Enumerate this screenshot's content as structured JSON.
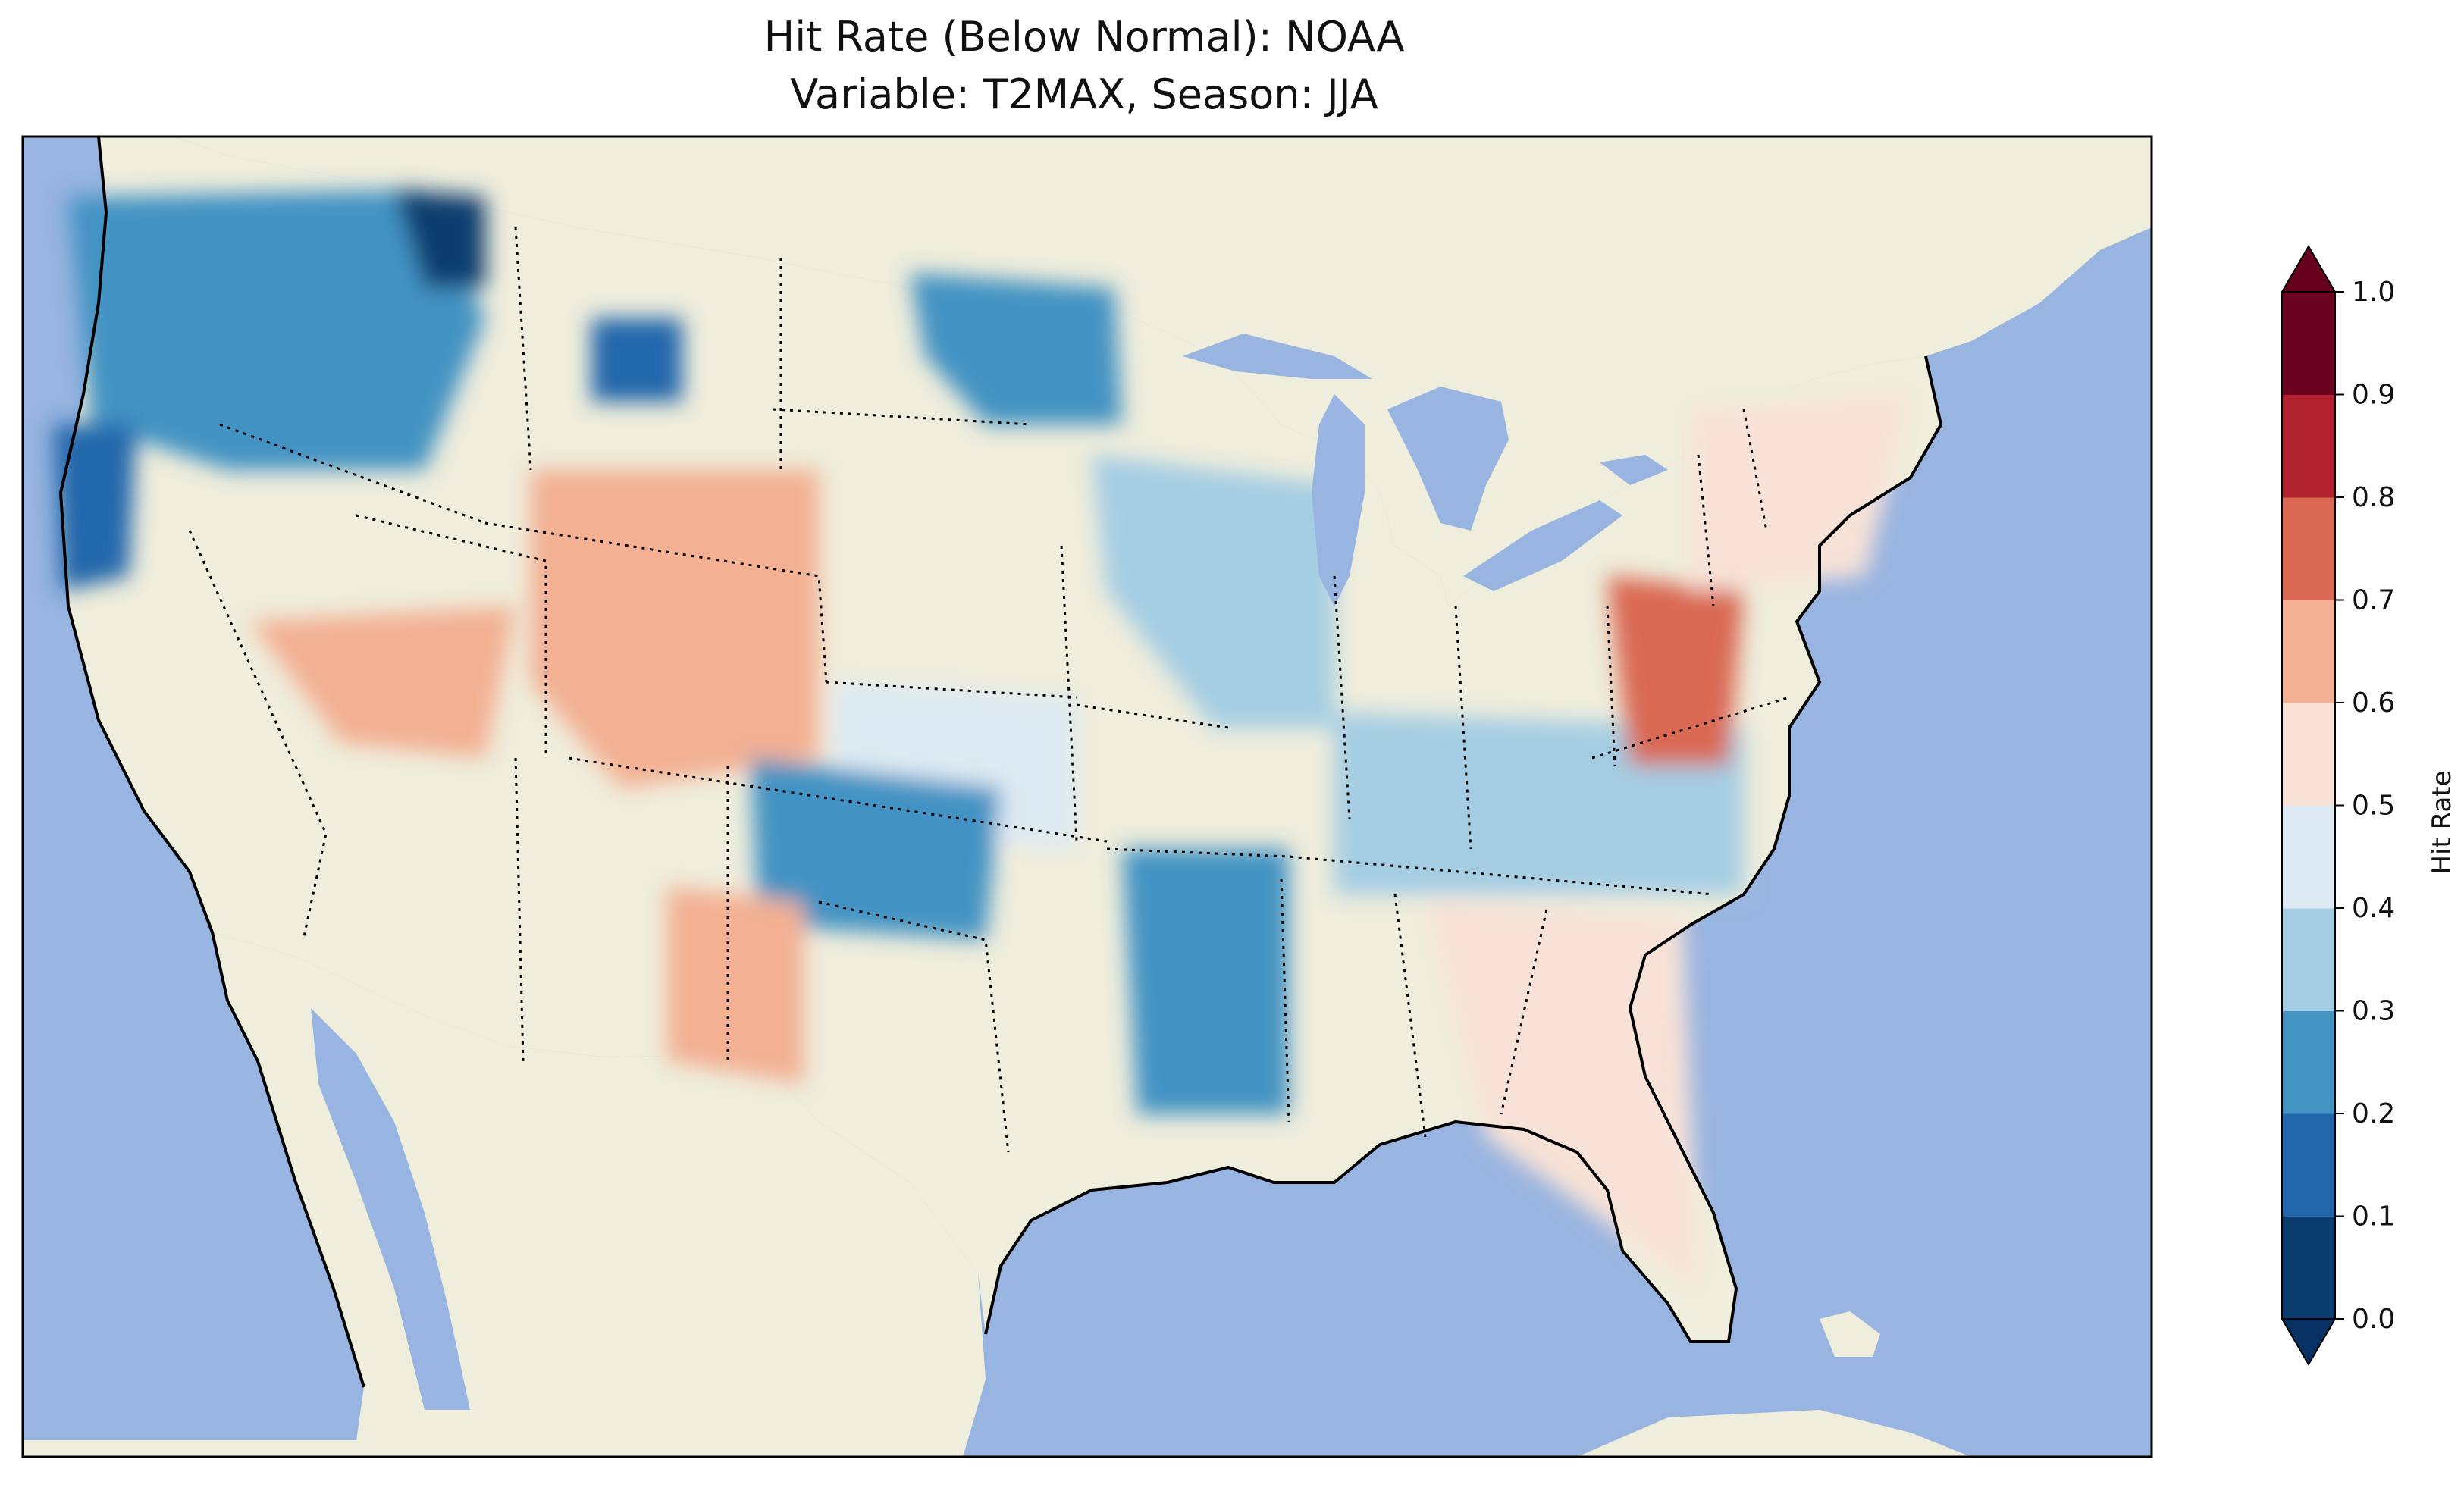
{
  "title": {
    "line1": "Hit Rate (Below Normal): NOAA",
    "line2": "Variable: T2MAX, Season: JJA"
  },
  "map": {
    "ocean_color": "#98b4e0",
    "land_color": "#efeddc",
    "extent": "Contiguous United States",
    "projection": "PlateCarree"
  },
  "colorbar": {
    "label": "Hit Rate",
    "ticks": [
      "0.0",
      "0.1",
      "0.2",
      "0.3",
      "0.4",
      "0.5",
      "0.6",
      "0.7",
      "0.8",
      "0.9",
      "1.0"
    ],
    "colors": [
      "#0b3c6e",
      "#2267ac",
      "#4393c3",
      "#a4cde3",
      "#ddeaf3",
      "#f8e2d7",
      "#f3b093",
      "#d96952",
      "#b2212f",
      "#6a0220"
    ],
    "under_color": "#073163",
    "over_color": "#67001f",
    "extend": "both"
  },
  "regions": [
    {
      "name": "Pacific Northwest",
      "value": 0.25
    },
    {
      "name": "Northern California coast",
      "value": 0.1
    },
    {
      "name": "Northern Idaho",
      "value": 0.08
    },
    {
      "name": "Central Montana",
      "value": 0.1
    },
    {
      "name": "North Dakota / Minnesota",
      "value": 0.2
    },
    {
      "name": "Iowa / Illinois",
      "value": 0.3
    },
    {
      "name": "Wyoming / Utah / Colorado",
      "value": 0.65
    },
    {
      "name": "Nevada",
      "value": 0.65
    },
    {
      "name": "Kansas",
      "value": 0.45
    },
    {
      "name": "Oklahoma / North Texas",
      "value": 0.25
    },
    {
      "name": "Arkansas / Louisiana",
      "value": 0.2
    },
    {
      "name": "Kentucky / Tennessee",
      "value": 0.35
    },
    {
      "name": "Virginia / Maryland",
      "value": 0.7
    },
    {
      "name": "Eastern New Mexico",
      "value": 0.65
    },
    {
      "name": "Southeast / Florida",
      "value": 0.5
    },
    {
      "name": "Northeast",
      "value": 0.5
    }
  ]
}
